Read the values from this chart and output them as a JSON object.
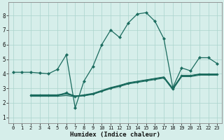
{
  "xlabel": "Humidex (Indice chaleur)",
  "xlim": [
    -0.5,
    23.5
  ],
  "ylim": [
    0.6,
    8.9
  ],
  "xticks": [
    0,
    1,
    2,
    3,
    4,
    5,
    6,
    7,
    8,
    9,
    10,
    11,
    12,
    13,
    14,
    15,
    16,
    17,
    18,
    19,
    20,
    21,
    22,
    23
  ],
  "yticks": [
    1,
    2,
    3,
    4,
    5,
    6,
    7,
    8
  ],
  "bg_color": "#d6eeea",
  "grid_color": "#aad4cc",
  "line_color": "#1a6b5e",
  "main_x": [
    0,
    1,
    2,
    3,
    4,
    5,
    6,
    7,
    8,
    9,
    10,
    11,
    12,
    13,
    14,
    15,
    16,
    17,
    18,
    19,
    20,
    21,
    22,
    23
  ],
  "main_y": [
    4.1,
    4.1,
    4.1,
    4.05,
    4.0,
    4.3,
    5.3,
    1.65,
    3.5,
    4.5,
    6.0,
    7.0,
    6.5,
    7.5,
    8.1,
    8.2,
    7.6,
    6.4,
    3.05,
    4.4,
    4.2,
    5.1,
    5.1,
    4.7
  ],
  "r1_x": [
    2,
    3,
    4,
    5,
    6,
    7,
    8,
    9,
    10,
    11,
    12,
    13,
    14,
    15,
    16,
    17,
    18,
    19,
    20,
    21,
    22,
    23
  ],
  "r1_y": [
    2.5,
    2.5,
    2.5,
    2.5,
    2.7,
    2.45,
    2.5,
    2.6,
    2.8,
    3.0,
    3.15,
    3.35,
    3.45,
    3.55,
    3.65,
    3.75,
    2.95,
    3.85,
    3.85,
    3.95,
    3.95,
    3.95
  ],
  "r2_x": [
    2,
    3,
    4,
    5,
    6,
    7,
    8,
    9,
    10,
    11,
    12,
    13,
    14,
    15,
    16,
    17,
    18,
    19,
    20,
    21,
    22,
    23
  ],
  "r2_y": [
    2.5,
    2.5,
    2.5,
    2.5,
    2.6,
    2.45,
    2.55,
    2.65,
    2.85,
    3.05,
    3.2,
    3.38,
    3.48,
    3.58,
    3.68,
    3.78,
    3.0,
    3.88,
    3.88,
    3.98,
    3.98,
    3.98
  ],
  "r3_x": [
    2,
    3,
    4,
    5,
    6,
    7,
    8,
    9,
    10,
    11,
    12,
    13,
    14,
    15,
    16,
    17,
    18,
    19,
    20,
    21,
    22,
    23
  ],
  "r3_y": [
    2.45,
    2.45,
    2.45,
    2.45,
    2.5,
    2.42,
    2.48,
    2.58,
    2.78,
    2.98,
    3.12,
    3.3,
    3.4,
    3.5,
    3.6,
    3.7,
    2.9,
    3.8,
    3.8,
    3.9,
    3.9,
    3.9
  ],
  "r4_x": [
    2,
    3,
    4,
    5,
    6,
    7,
    8,
    9,
    10,
    11,
    12,
    13,
    14,
    15,
    16,
    17,
    18,
    19,
    20,
    21,
    22,
    23
  ],
  "r4_y": [
    2.55,
    2.55,
    2.55,
    2.55,
    2.65,
    2.48,
    2.52,
    2.62,
    2.82,
    3.02,
    3.18,
    3.36,
    3.46,
    3.56,
    3.66,
    3.76,
    2.97,
    3.86,
    3.86,
    3.96,
    3.96,
    3.96
  ]
}
